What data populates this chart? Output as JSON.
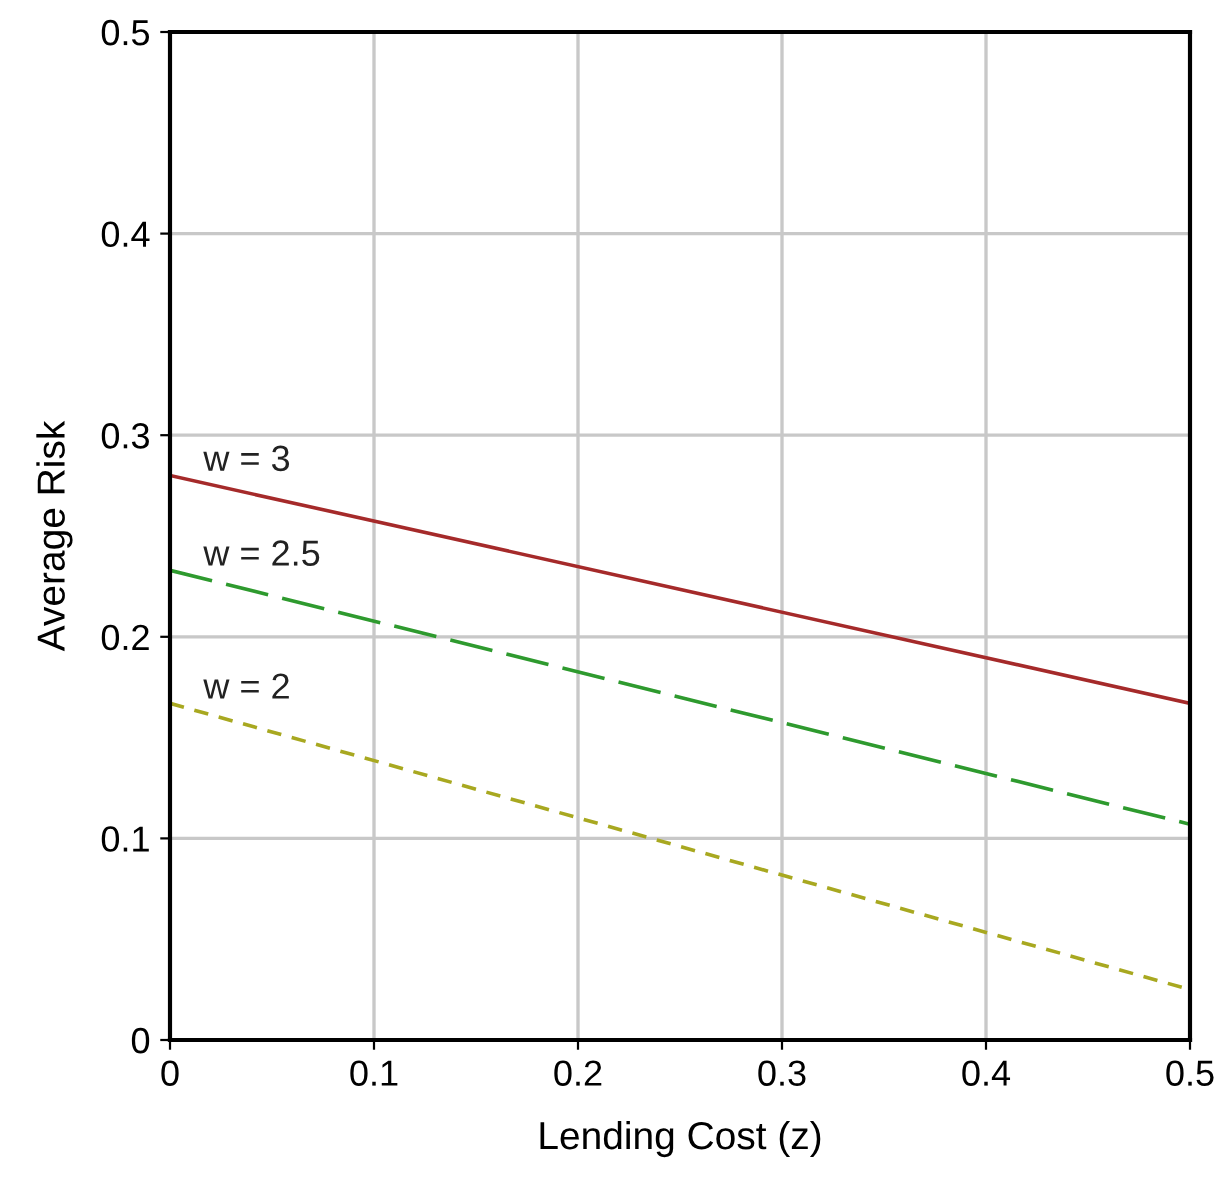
{
  "chart_data": {
    "type": "line",
    "xlabel": "Lending Cost (z)",
    "ylabel": "Average Risk",
    "x": [
      0,
      0.5
    ],
    "series": [
      {
        "name": "w = 3",
        "color": "#a52a2a",
        "values": [
          0.28,
          0.167
        ],
        "line_style": "solid"
      },
      {
        "name": "w = 2.5",
        "color": "#2e9a2e",
        "values": [
          0.233,
          0.107
        ],
        "line_style": "dashed"
      },
      {
        "name": "w = 2",
        "color": "#a8a820",
        "values": [
          0.167,
          0.025
        ],
        "line_style": "dotted"
      }
    ],
    "xlim": [
      0,
      0.5
    ],
    "ylim": [
      0,
      0.5
    ],
    "xticks": [
      0,
      0.1,
      0.2,
      0.3,
      0.4,
      0.5
    ],
    "yticks": [
      0,
      0.1,
      0.2,
      0.3,
      0.4,
      0.5
    ],
    "grid": true,
    "marker": "none"
  }
}
